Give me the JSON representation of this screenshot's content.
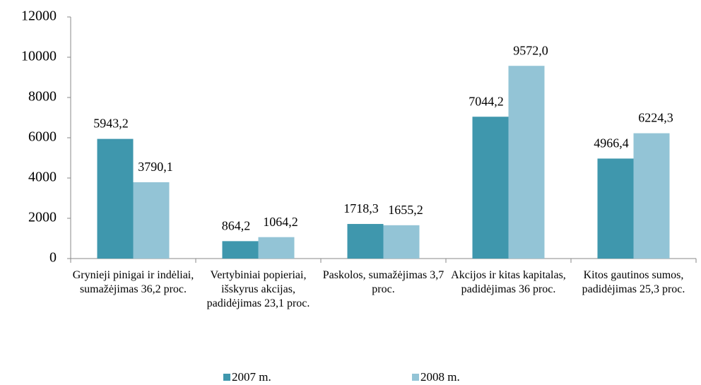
{
  "chart_data": {
    "type": "bar",
    "categories": [
      "Grynieji pinigai ir indėliai, sumažėjimas 36,2 proc.",
      "Vertybiniai popieriai, išskyrus akcijas, padidėjimas 23,1 proc.",
      "Paskolos, sumažėjimas 3,7 proc.",
      "Akcijos ir kitas kapitalas, padidėjimas 36 proc.",
      "Kitos gautinos sumos, padidėjimas 25,3 proc."
    ],
    "series": [
      {
        "name": "2007 m.",
        "color": "#3f97ad",
        "values": [
          5943.2,
          864.2,
          1718.3,
          7044.2,
          4966.4
        ],
        "value_labels": [
          "5943,2",
          "864,2",
          "1718,3",
          "7044,2",
          "4966,4"
        ]
      },
      {
        "name": "2008 m.",
        "color": "#93c4d6",
        "values": [
          3790.1,
          1064.2,
          1655.2,
          9572.0,
          6224.3
        ],
        "value_labels": [
          "3790,1",
          "1064,2",
          "1655,2",
          "9572,0",
          "6224,3"
        ]
      }
    ],
    "ylim": [
      0,
      12000
    ],
    "yticks": [
      0,
      2000,
      4000,
      6000,
      8000,
      10000,
      12000
    ],
    "grid": false,
    "legend": "bottom"
  }
}
